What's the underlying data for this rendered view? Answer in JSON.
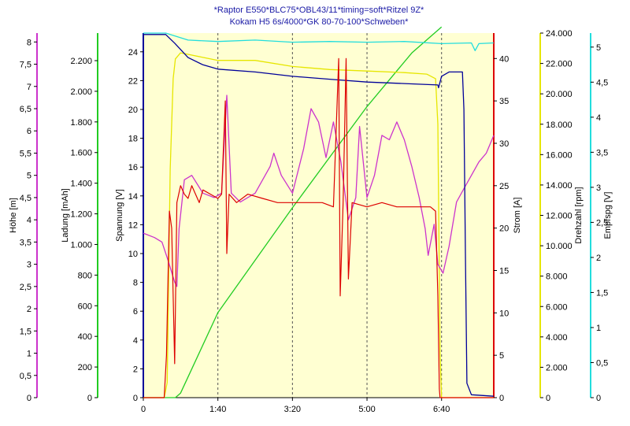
{
  "chart_data": {
    "type": "line",
    "title": "*Raptor E550*BLC75*OBL43/11*timing=soft*Ritzel 9Z*",
    "subtitle": "Kokam H5 6s/4000*GK 80-70-100*Schweben*",
    "x_axis": {
      "range_seconds": [
        0,
        470
      ],
      "ticks": [
        {
          "label": "0",
          "value": 0
        },
        {
          "label": "1:40",
          "value": 100
        },
        {
          "label": "3:20",
          "value": 200
        },
        {
          "label": "5:00",
          "value": 300
        },
        {
          "label": "6:40",
          "value": 400
        }
      ]
    },
    "y_axes": [
      {
        "name": "hoehe",
        "label": "Höhe [m]",
        "color": "#cc33cc",
        "range": [
          0,
          8.2
        ],
        "ticks": [
          "0",
          "0,5",
          "1",
          "1,5",
          "2",
          "2,5",
          "3",
          "3,5",
          "4",
          "4,5",
          "5",
          "5,5",
          "6",
          "6,5",
          "7",
          "7,5",
          "8"
        ]
      },
      {
        "name": "ladung",
        "label": "Ladung [mAh]",
        "color": "#22cc22",
        "range": [
          0,
          2380
        ],
        "ticks": [
          "0",
          "200",
          "400",
          "600",
          "800",
          "1.000",
          "1.200",
          "1.400",
          "1.600",
          "1.800",
          "2.000",
          "2.200"
        ]
      },
      {
        "name": "spannung",
        "label": "Spannung [V]",
        "color": "#000099",
        "range": [
          0,
          25.3
        ],
        "ticks": [
          "0",
          "2",
          "4",
          "6",
          "8",
          "10",
          "12",
          "14",
          "16",
          "18",
          "20",
          "22",
          "24"
        ]
      },
      {
        "name": "strom",
        "label": "Strom [A]",
        "color": "#dd0000",
        "range": [
          0,
          43
        ],
        "ticks": [
          "0",
          "5",
          "10",
          "15",
          "20",
          "25",
          "30",
          "35",
          "40"
        ]
      },
      {
        "name": "drehzahl",
        "label": "Drehzahl [rpm]",
        "color": "#e6e600",
        "range": [
          0,
          24000
        ],
        "ticks": [
          "0",
          "2.000",
          "4.000",
          "6.000",
          "8.000",
          "10.000",
          "12.000",
          "14.000",
          "16.000",
          "18.000",
          "20.000",
          "22.000",
          "24.000"
        ]
      },
      {
        "name": "empfspg",
        "label": "Empfspg [V]",
        "color": "#22dddd",
        "range": [
          0,
          5.2
        ],
        "ticks": [
          "0",
          "0,5",
          "1",
          "1,5",
          "2",
          "2,5",
          "3",
          "3,5",
          "4",
          "4,5",
          "5"
        ]
      }
    ],
    "series": [
      {
        "name": "Höhe",
        "axis": "hoehe",
        "points": [
          [
            0,
            3.7
          ],
          [
            15,
            3.6
          ],
          [
            25,
            3.5
          ],
          [
            33,
            3.1
          ],
          [
            42,
            2.6
          ],
          [
            45,
            2.5
          ],
          [
            48,
            3.8
          ],
          [
            55,
            4.9
          ],
          [
            65,
            5.0
          ],
          [
            80,
            4.6
          ],
          [
            95,
            4.5
          ],
          [
            105,
            4.6
          ],
          [
            112,
            6.8
          ],
          [
            118,
            4.6
          ],
          [
            130,
            4.4
          ],
          [
            150,
            4.6
          ],
          [
            170,
            5.2
          ],
          [
            175,
            5.5
          ],
          [
            185,
            5.0
          ],
          [
            200,
            4.6
          ],
          [
            215,
            5.6
          ],
          [
            225,
            6.5
          ],
          [
            235,
            6.2
          ],
          [
            245,
            5.4
          ],
          [
            255,
            6.2
          ],
          [
            265,
            5.3
          ],
          [
            275,
            4.0
          ],
          [
            285,
            4.5
          ],
          [
            290,
            6.1
          ],
          [
            300,
            4.5
          ],
          [
            310,
            5.0
          ],
          [
            320,
            5.9
          ],
          [
            330,
            5.8
          ],
          [
            340,
            6.2
          ],
          [
            350,
            5.8
          ],
          [
            360,
            5.2
          ],
          [
            370,
            4.5
          ],
          [
            378,
            3.8
          ],
          [
            382,
            3.2
          ],
          [
            390,
            3.9
          ],
          [
            395,
            3.0
          ],
          [
            402,
            2.8
          ],
          [
            410,
            3.4
          ],
          [
            420,
            4.4
          ],
          [
            430,
            4.7
          ],
          [
            440,
            5.0
          ],
          [
            450,
            5.3
          ],
          [
            460,
            5.5
          ],
          [
            470,
            5.9
          ]
        ]
      },
      {
        "name": "Ladung",
        "axis": "ladung",
        "points": [
          [
            0,
            0
          ],
          [
            43,
            0
          ],
          [
            50,
            30
          ],
          [
            100,
            555
          ],
          [
            200,
            1240
          ],
          [
            300,
            1900
          ],
          [
            360,
            2250
          ],
          [
            400,
            2420
          ]
        ]
      },
      {
        "name": "Spannung",
        "axis": "spannung",
        "points": [
          [
            0,
            25.2
          ],
          [
            30,
            25.2
          ],
          [
            42,
            24.6
          ],
          [
            60,
            23.6
          ],
          [
            80,
            23.1
          ],
          [
            100,
            22.8
          ],
          [
            150,
            22.6
          ],
          [
            200,
            22.3
          ],
          [
            250,
            22.1
          ],
          [
            300,
            21.9
          ],
          [
            350,
            21.8
          ],
          [
            395,
            21.7
          ],
          [
            396,
            21.5
          ],
          [
            400,
            22.3
          ],
          [
            410,
            22.6
          ],
          [
            420,
            22.6
          ],
          [
            428,
            22.6
          ],
          [
            430,
            20.0
          ],
          [
            432,
            10.0
          ],
          [
            434,
            1.0
          ],
          [
            440,
            0.2
          ],
          [
            470,
            0.1
          ]
        ]
      },
      {
        "name": "Strom",
        "axis": "strom",
        "points": [
          [
            0,
            0
          ],
          [
            28,
            0
          ],
          [
            31,
            5
          ],
          [
            35,
            22
          ],
          [
            38,
            20
          ],
          [
            42,
            4
          ],
          [
            45,
            23
          ],
          [
            50,
            25
          ],
          [
            55,
            24
          ],
          [
            60,
            23.5
          ],
          [
            65,
            25
          ],
          [
            70,
            24
          ],
          [
            75,
            23
          ],
          [
            80,
            24.5
          ],
          [
            90,
            24
          ],
          [
            100,
            23.5
          ],
          [
            105,
            24
          ],
          [
            110,
            35
          ],
          [
            112,
            17
          ],
          [
            115,
            24
          ],
          [
            125,
            23
          ],
          [
            140,
            24
          ],
          [
            160,
            23.5
          ],
          [
            180,
            23
          ],
          [
            200,
            23
          ],
          [
            220,
            23
          ],
          [
            240,
            23
          ],
          [
            255,
            22.5
          ],
          [
            262,
            40
          ],
          [
            264,
            12
          ],
          [
            268,
            23
          ],
          [
            272,
            40
          ],
          [
            275,
            14
          ],
          [
            280,
            23
          ],
          [
            300,
            22.5
          ],
          [
            320,
            23
          ],
          [
            340,
            22.5
          ],
          [
            360,
            22.5
          ],
          [
            385,
            22.5
          ],
          [
            392,
            22
          ],
          [
            395,
            12
          ],
          [
            397,
            1
          ],
          [
            398,
            0
          ],
          [
            470,
            0
          ]
        ]
      },
      {
        "name": "Drehzahl",
        "axis": "drehzahl",
        "points": [
          [
            0,
            0
          ],
          [
            28,
            0
          ],
          [
            32,
            1000
          ],
          [
            36,
            15000
          ],
          [
            40,
            21000
          ],
          [
            43,
            22300
          ],
          [
            50,
            22700
          ],
          [
            60,
            22600
          ],
          [
            80,
            22400
          ],
          [
            100,
            22200
          ],
          [
            150,
            22200
          ],
          [
            200,
            21800
          ],
          [
            250,
            21600
          ],
          [
            300,
            21500
          ],
          [
            350,
            21400
          ],
          [
            380,
            21300
          ],
          [
            392,
            21000
          ],
          [
            395,
            18000
          ],
          [
            398,
            3000
          ],
          [
            400,
            0
          ],
          [
            470,
            0
          ]
        ]
      },
      {
        "name": "Empfspg",
        "axis": "empfspg",
        "points": [
          [
            0,
            5.2
          ],
          [
            30,
            5.2
          ],
          [
            60,
            5.1
          ],
          [
            100,
            5.08
          ],
          [
            150,
            5.1
          ],
          [
            200,
            5.07
          ],
          [
            250,
            5.08
          ],
          [
            300,
            5.07
          ],
          [
            350,
            5.08
          ],
          [
            400,
            5.05
          ],
          [
            440,
            5.06
          ],
          [
            445,
            4.95
          ],
          [
            450,
            5.05
          ],
          [
            470,
            5.06
          ]
        ]
      }
    ],
    "vertical_gridlines_seconds": [
      100,
      200,
      300,
      400
    ],
    "legend": "none"
  }
}
